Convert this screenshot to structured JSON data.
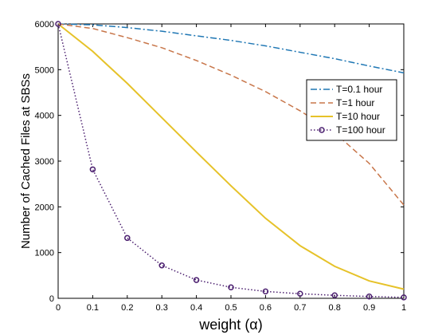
{
  "chart_data": {
    "type": "line",
    "xlabel": "weight (α)",
    "ylabel": "Number of Cached Files at SBSs",
    "xlim": [
      0,
      1
    ],
    "ylim": [
      0,
      6000
    ],
    "xticks": [
      "0",
      "0.1",
      "0.2",
      "0.3",
      "0.4",
      "0.5",
      "0.6",
      "0.7",
      "0.8",
      "0.9",
      "1"
    ],
    "yticks": [
      "0",
      "1000",
      "2000",
      "3000",
      "4000",
      "5000",
      "6000"
    ],
    "grid": false,
    "legend_position": "right",
    "x": [
      0,
      0.1,
      0.2,
      0.3,
      0.4,
      0.5,
      0.6,
      0.7,
      0.8,
      0.9,
      1
    ],
    "series": [
      {
        "name": "T=0.1 hour",
        "color": "#1f77b4",
        "style": "dashdot",
        "marker": "none",
        "values": [
          6000,
          5980,
          5920,
          5840,
          5740,
          5640,
          5520,
          5380,
          5240,
          5080,
          4930
        ]
      },
      {
        "name": "T=1 hour",
        "color": "#c8764a",
        "style": "dashed",
        "marker": "none",
        "values": [
          6000,
          5900,
          5700,
          5480,
          5200,
          4880,
          4520,
          4100,
          3620,
          2950,
          2040
        ]
      },
      {
        "name": "T=10 hour",
        "color": "#e6c229",
        "style": "solid",
        "marker": "none",
        "values": [
          6000,
          5400,
          4700,
          3950,
          3200,
          2460,
          1750,
          1150,
          700,
          380,
          200
        ]
      },
      {
        "name": "T=100 hour",
        "color": "#4b1f6f",
        "style": "dotted",
        "marker": "circle",
        "values": [
          6000,
          2820,
          1320,
          720,
          400,
          240,
          150,
          100,
          65,
          40,
          20
        ]
      }
    ]
  }
}
